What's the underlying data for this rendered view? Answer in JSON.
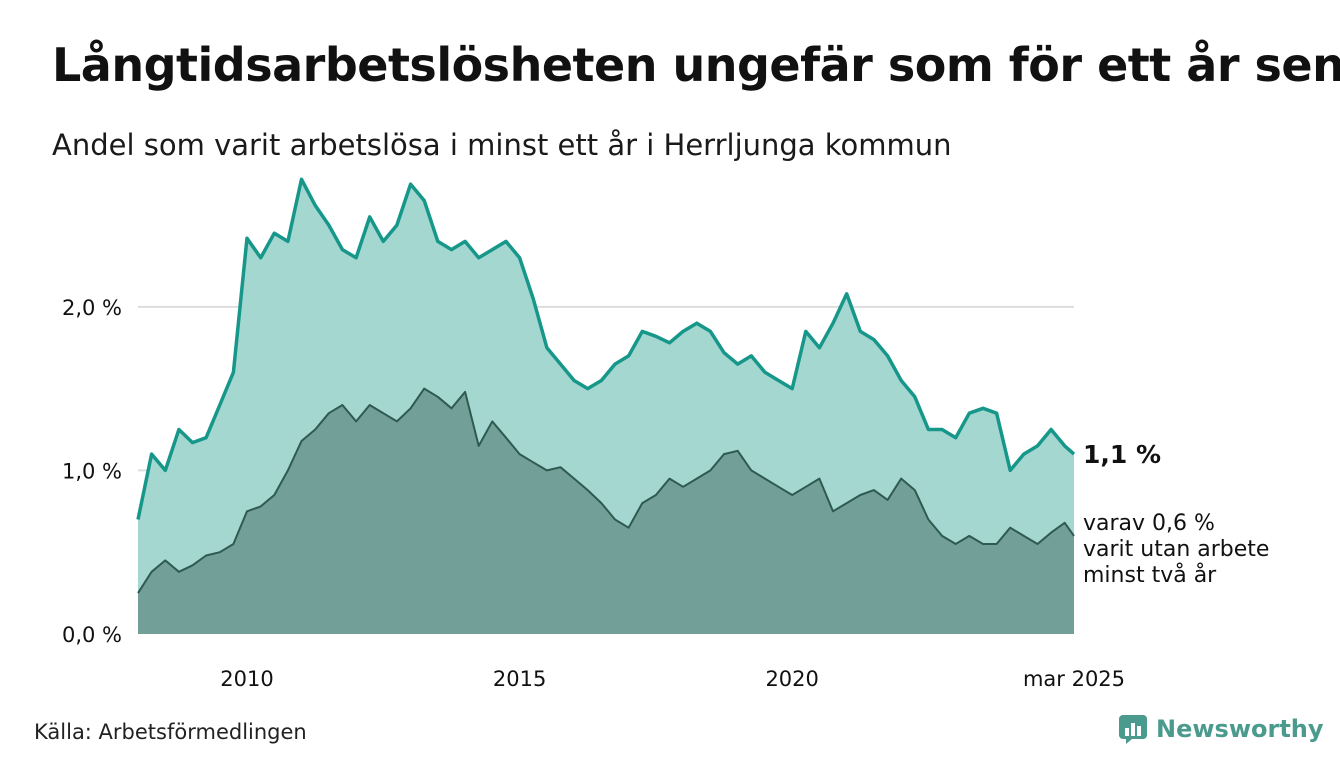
{
  "title": "Långtidsarbetslösheten ungefär som för ett år sen",
  "subtitle": "Andel som varit arbetslösa i minst ett år i Herrljunga kommun",
  "source": "Källa: Arbetsförmedlingen",
  "brand": {
    "name": "Newsworthy",
    "icon": "newsworthy-logo-icon"
  },
  "colors": {
    "area1_fill": "#a5d7d1",
    "area1_line": "#16978a",
    "area2_fill": "#729f98",
    "area2_line": "#2f5a52",
    "grid": "#dddddd",
    "brand": "#4a9a8d"
  },
  "chart_data": {
    "type": "area",
    "ylim": [
      0,
      2.8
    ],
    "y_ticks": [
      0,
      1,
      2
    ],
    "y_tick_labels": [
      "0,0 %",
      "1,0 %",
      "2,0 %"
    ],
    "x_range": [
      2008.0,
      2025.17
    ],
    "x_tick_values": [
      2010,
      2015,
      2020,
      2025.17
    ],
    "x_tick_labels": [
      "2010",
      "2015",
      "2020",
      "mar 2025"
    ],
    "grid": true,
    "series": [
      {
        "end_label": "1,1 %",
        "x": [
          2008.0,
          2008.25,
          2008.5,
          2008.75,
          2009.0,
          2009.25,
          2009.5,
          2009.75,
          2010.0,
          2010.25,
          2010.5,
          2010.75,
          2011.0,
          2011.25,
          2011.5,
          2011.75,
          2012.0,
          2012.25,
          2012.5,
          2012.75,
          2013.0,
          2013.25,
          2013.5,
          2013.75,
          2014.0,
          2014.25,
          2014.5,
          2014.75,
          2015.0,
          2015.25,
          2015.5,
          2015.75,
          2016.0,
          2016.25,
          2016.5,
          2016.75,
          2017.0,
          2017.25,
          2017.5,
          2017.75,
          2018.0,
          2018.25,
          2018.5,
          2018.75,
          2019.0,
          2019.25,
          2019.5,
          2019.75,
          2020.0,
          2020.25,
          2020.5,
          2020.75,
          2021.0,
          2021.25,
          2021.5,
          2021.75,
          2022.0,
          2022.25,
          2022.5,
          2022.75,
          2023.0,
          2023.25,
          2023.5,
          2023.75,
          2024.0,
          2024.25,
          2024.5,
          2024.75,
          2025.0,
          2025.17
        ],
        "values": [
          0.7,
          1.1,
          1.0,
          1.25,
          1.17,
          1.2,
          1.4,
          1.6,
          2.42,
          2.3,
          2.45,
          2.4,
          2.78,
          2.62,
          2.5,
          2.35,
          2.3,
          2.55,
          2.4,
          2.5,
          2.75,
          2.65,
          2.4,
          2.35,
          2.4,
          2.3,
          2.35,
          2.4,
          2.3,
          2.05,
          1.75,
          1.65,
          1.55,
          1.5,
          1.55,
          1.65,
          1.7,
          1.85,
          1.82,
          1.78,
          1.85,
          1.9,
          1.85,
          1.72,
          1.65,
          1.7,
          1.6,
          1.55,
          1.5,
          1.85,
          1.75,
          1.9,
          2.08,
          1.85,
          1.8,
          1.7,
          1.55,
          1.45,
          1.25,
          1.25,
          1.2,
          1.35,
          1.38,
          1.35,
          1.0,
          1.1,
          1.15,
          1.25,
          1.15,
          1.1
        ]
      },
      {
        "end_label": "varav 0,6 % varit utan arbete minst två år",
        "end_label_lines": [
          "varav 0,6 %",
          "varit utan arbete",
          "minst två år"
        ],
        "x": [
          2008.0,
          2008.25,
          2008.5,
          2008.75,
          2009.0,
          2009.25,
          2009.5,
          2009.75,
          2010.0,
          2010.25,
          2010.5,
          2010.75,
          2011.0,
          2011.25,
          2011.5,
          2011.75,
          2012.0,
          2012.25,
          2012.5,
          2012.75,
          2013.0,
          2013.25,
          2013.5,
          2013.75,
          2014.0,
          2014.25,
          2014.5,
          2014.75,
          2015.0,
          2015.25,
          2015.5,
          2015.75,
          2016.0,
          2016.25,
          2016.5,
          2016.75,
          2017.0,
          2017.25,
          2017.5,
          2017.75,
          2018.0,
          2018.25,
          2018.5,
          2018.75,
          2019.0,
          2019.25,
          2019.5,
          2019.75,
          2020.0,
          2020.25,
          2020.5,
          2020.75,
          2021.0,
          2021.25,
          2021.5,
          2021.75,
          2022.0,
          2022.25,
          2022.5,
          2022.75,
          2023.0,
          2023.25,
          2023.5,
          2023.75,
          2024.0,
          2024.25,
          2024.5,
          2024.75,
          2025.0,
          2025.17
        ],
        "values": [
          0.25,
          0.38,
          0.45,
          0.38,
          0.42,
          0.48,
          0.5,
          0.55,
          0.75,
          0.78,
          0.85,
          1.0,
          1.18,
          1.25,
          1.35,
          1.4,
          1.3,
          1.4,
          1.35,
          1.3,
          1.38,
          1.5,
          1.45,
          1.38,
          1.48,
          1.15,
          1.3,
          1.2,
          1.1,
          1.05,
          1.0,
          1.02,
          0.95,
          0.88,
          0.8,
          0.7,
          0.65,
          0.8,
          0.85,
          0.95,
          0.9,
          0.95,
          1.0,
          1.1,
          1.12,
          1.0,
          0.95,
          0.9,
          0.85,
          0.9,
          0.95,
          0.75,
          0.8,
          0.85,
          0.88,
          0.82,
          0.95,
          0.88,
          0.7,
          0.6,
          0.55,
          0.6,
          0.55,
          0.55,
          0.65,
          0.6,
          0.55,
          0.62,
          0.68,
          0.6
        ]
      }
    ]
  }
}
